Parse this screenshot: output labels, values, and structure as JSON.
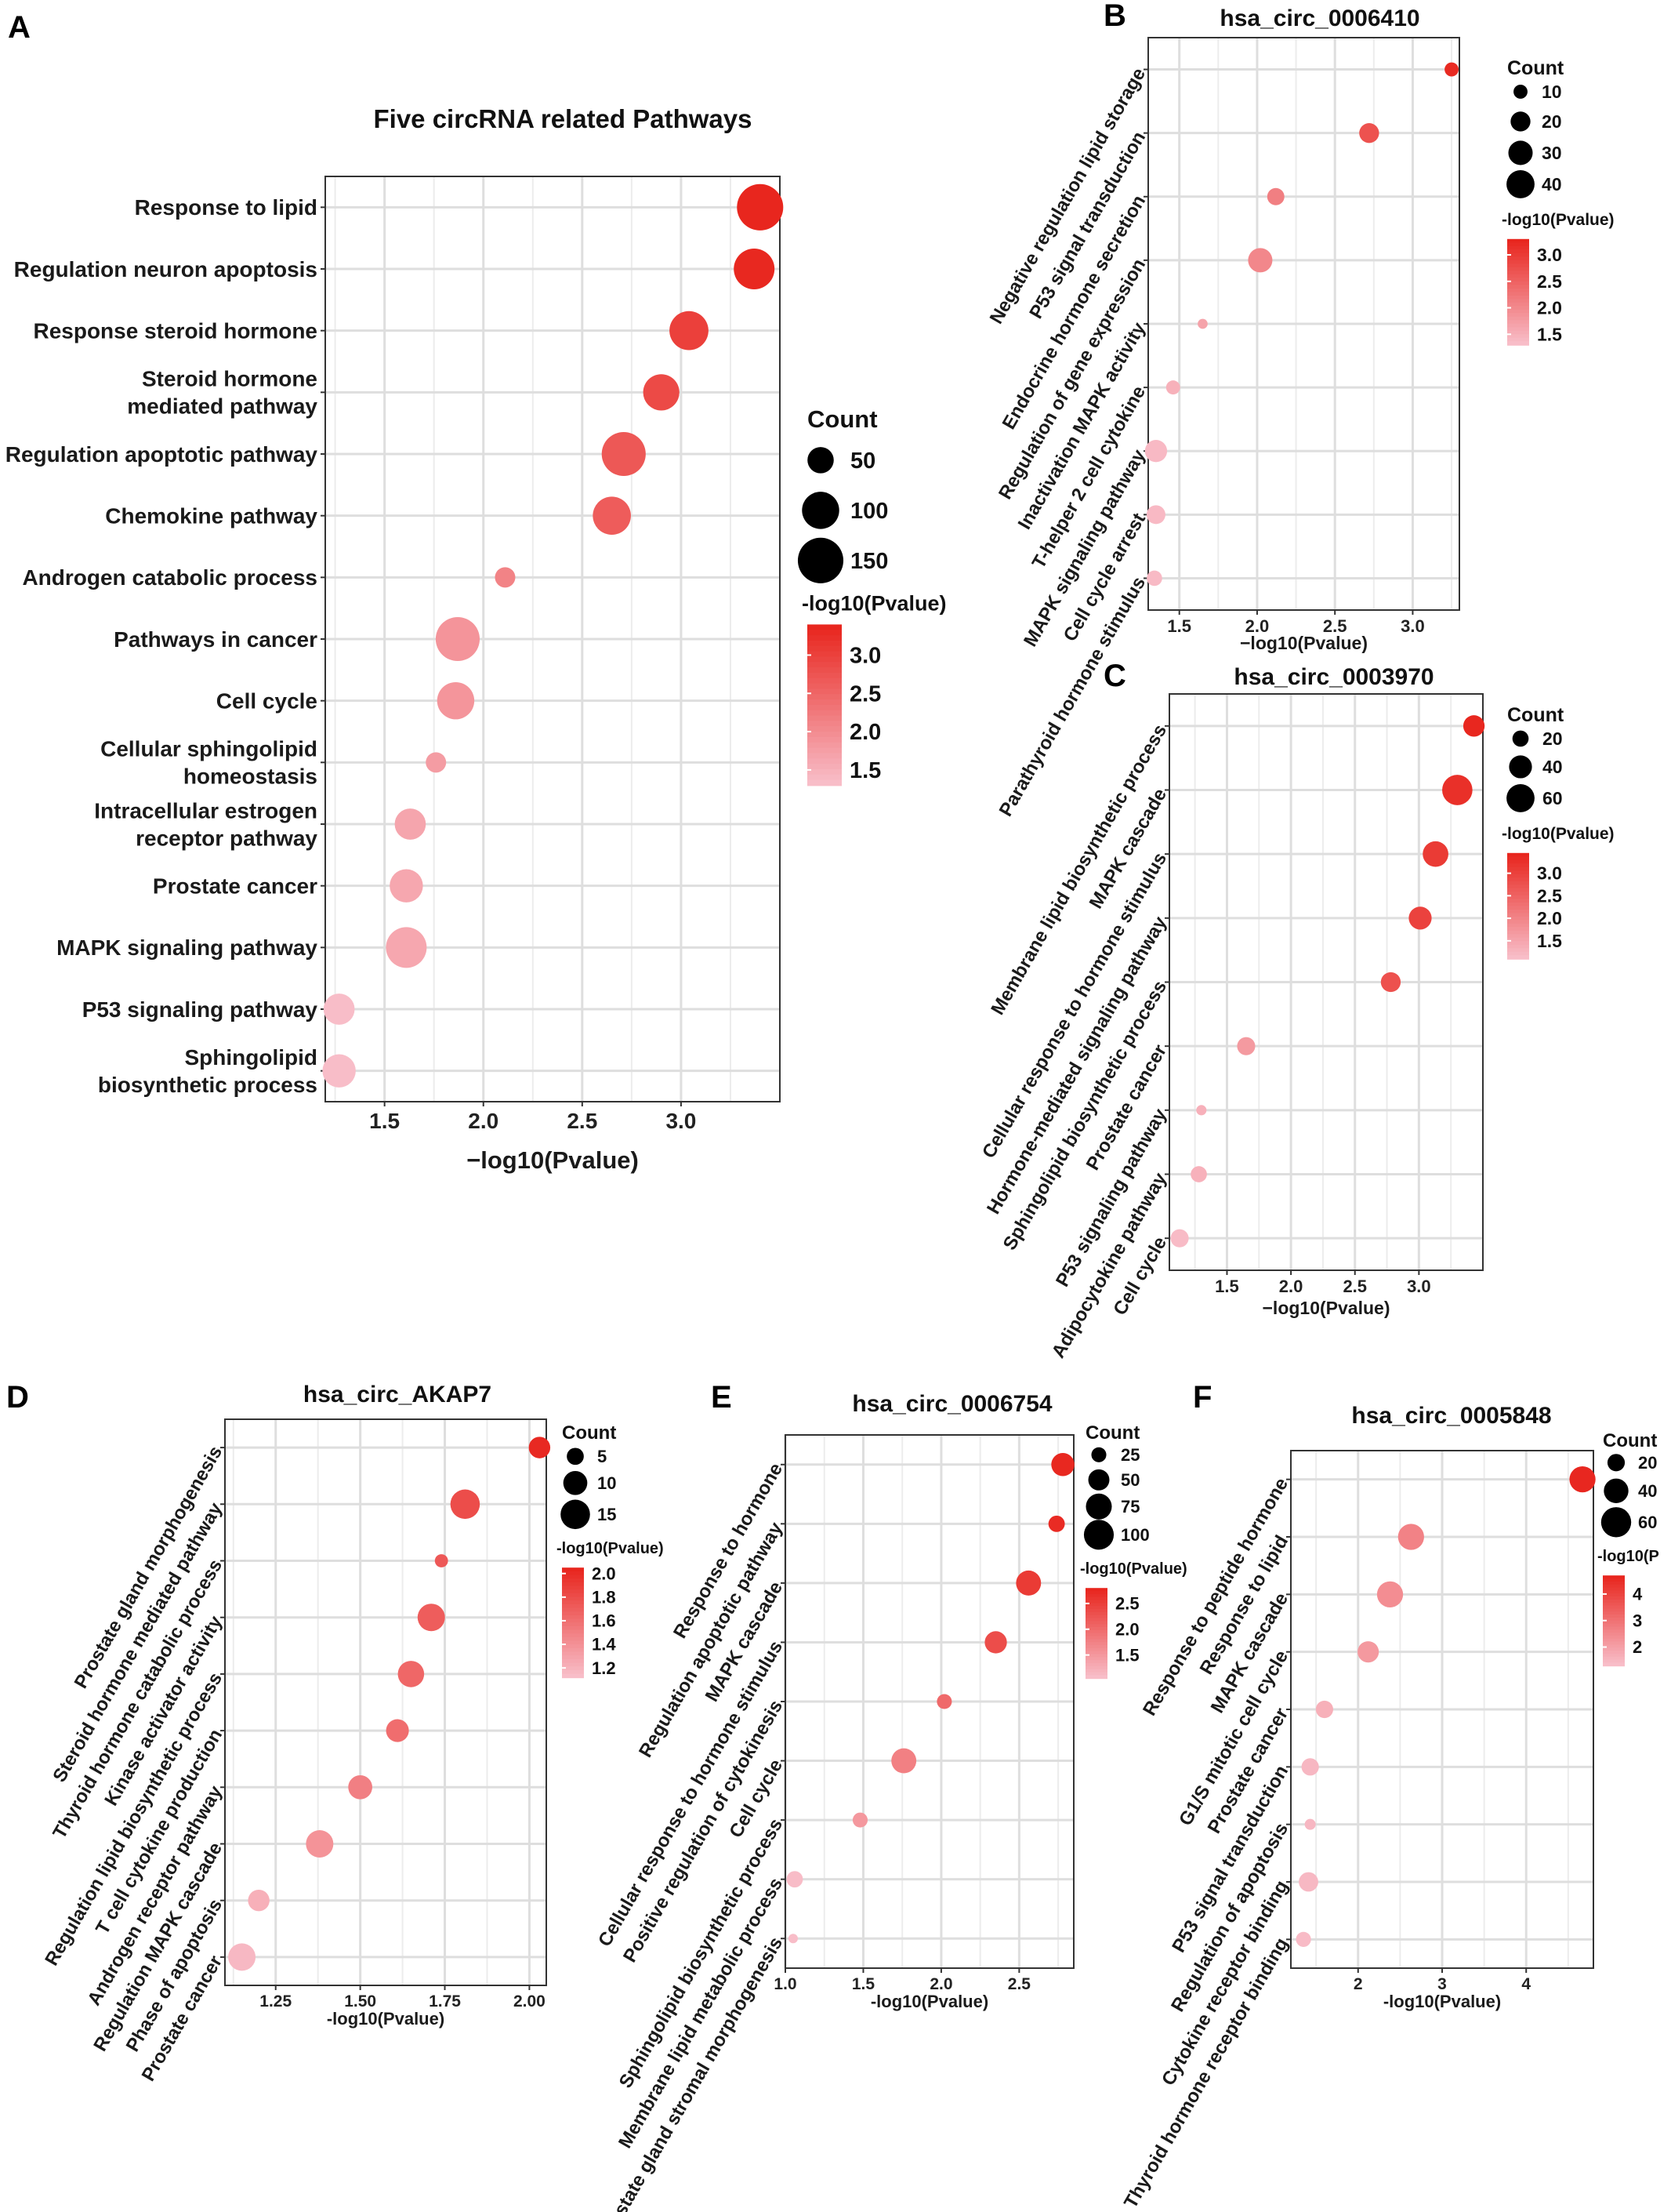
{
  "chart_data": [
    {
      "id": "A",
      "panel_label": "A",
      "type": "scatter",
      "title": "Five circRNA related Pathways",
      "xlabel": "−log10(Pvalue)",
      "xlim": [
        1.2,
        3.5
      ],
      "xticks": [
        1.5,
        2.0,
        2.5,
        3.0
      ],
      "xtick_labels": [
        "1.5",
        "2.0",
        "2.5",
        "3.0"
      ],
      "categories": [
        "Response to lipid",
        "Regulation neuron apoptosis",
        "Response steroid hormone",
        "Steroid hormone\nmediated pathway",
        "Regulation apoptotic pathway",
        "Chemokine pathway",
        "Androgen catabolic process",
        "Pathways in cancer",
        "Cell cycle",
        "Cellular sphingolipid\nhomeostasis",
        "Intracellular estrogen\nreceptor pathway",
        "Prostate cancer",
        "MAPK signaling pathway",
        "P53 signaling pathway",
        "Sphingolipid\nbiosynthetic process"
      ],
      "x": [
        3.4,
        3.37,
        3.04,
        2.9,
        2.71,
        2.65,
        2.11,
        1.87,
        1.86,
        1.76,
        1.63,
        1.61,
        1.61,
        1.27,
        1.27
      ],
      "count": [
        155,
        120,
        110,
        95,
        140,
        105,
        30,
        140,
        100,
        30,
        70,
        80,
        120,
        70,
        80
      ],
      "size_legend": {
        "title": "Count",
        "values": [
          50,
          100,
          150
        ],
        "labels": [
          "50",
          "100",
          "150"
        ]
      },
      "color_legend": {
        "title": "-log10(Pvalue)",
        "range": [
          1.3,
          3.4
        ],
        "ticks": [
          3.0,
          2.5,
          2.0,
          1.5
        ],
        "tick_labels": [
          "3.0",
          "2.5",
          "2.0",
          "1.5"
        ]
      },
      "label_rotate": 0
    },
    {
      "id": "B",
      "panel_label": "B",
      "type": "scatter",
      "title": "hsa_circ_0006410",
      "xlabel": "−log10(Pvalue)",
      "xlim": [
        1.3,
        3.3
      ],
      "xticks": [
        1.5,
        2.0,
        2.5,
        3.0
      ],
      "xtick_labels": [
        "1.5",
        "2.0",
        "2.5",
        "3.0"
      ],
      "categories": [
        "Negative regulation lipid storage",
        "P53 signal transduction",
        "Endocrine hormone secretion",
        "Regulation of gene expression",
        "Inactivation MAPK activity",
        "T-helper 2 cell cytokine",
        "MAPK signaling pathway",
        "Cell cycle arrest",
        "Parathyroid hormone stimulus"
      ],
      "x": [
        3.25,
        2.72,
        2.12,
        2.02,
        1.65,
        1.46,
        1.35,
        1.35,
        1.34
      ],
      "count": [
        10,
        20,
        15,
        30,
        5,
        10,
        25,
        18,
        12
      ],
      "size_legend": {
        "title": "Count",
        "values": [
          10,
          20,
          30,
          40
        ],
        "labels": [
          "10",
          "20",
          "30",
          "40"
        ]
      },
      "color_legend": {
        "title": "-log10(Pvalue)",
        "range": [
          1.3,
          3.3
        ],
        "ticks": [
          3.0,
          2.5,
          2.0,
          1.5
        ],
        "tick_labels": [
          "3.0",
          "2.5",
          "2.0",
          "1.5"
        ]
      },
      "label_rotate": -60
    },
    {
      "id": "C",
      "panel_label": "C",
      "type": "scatter",
      "title": "hsa_circ_0003970",
      "xlabel": "−log10(Pvalue)",
      "xlim": [
        1.05,
        3.5
      ],
      "xticks": [
        1.5,
        2.0,
        2.5,
        3.0
      ],
      "xtick_labels": [
        "1.5",
        "2.0",
        "2.5",
        "3.0"
      ],
      "categories": [
        "Membrane lipid biosynthetic process",
        "MAPK cascade",
        "Cellular response to hormone stimulus",
        "Hormone-mediated signaling pathway",
        "Sphingolipid biosynthetic process",
        "Prostate cancer",
        "P53 signaling pathway",
        "Adipocytokine pathway",
        "Cell cycle"
      ],
      "x": [
        3.43,
        3.3,
        3.13,
        3.01,
        2.78,
        1.65,
        1.3,
        1.28,
        1.13
      ],
      "count": [
        35,
        70,
        50,
        40,
        30,
        25,
        8,
        20,
        25
      ],
      "size_legend": {
        "title": "Count",
        "values": [
          20,
          40,
          60
        ],
        "labels": [
          "20",
          "40",
          "60"
        ]
      },
      "color_legend": {
        "title": "-log10(Pvalue)",
        "range": [
          1.1,
          3.45
        ],
        "ticks": [
          3.0,
          2.5,
          2.0,
          1.5
        ],
        "tick_labels": [
          "3.0",
          "2.5",
          "2.0",
          "1.5"
        ]
      },
      "label_rotate": -60
    },
    {
      "id": "D",
      "panel_label": "D",
      "type": "scatter",
      "title": "hsa_circ_AKAP7",
      "xlabel": "-log10(Pvalue)",
      "xlim": [
        1.1,
        2.05
      ],
      "xticks": [
        1.25,
        1.5,
        1.75,
        2.0
      ],
      "xtick_labels": [
        "1.25",
        "1.50",
        "1.75",
        "2.00"
      ],
      "categories": [
        "Prostate gland morphogenesis",
        "Steroid hormone mediated pathway",
        "Thyroid hormone catabolic process",
        "Kinase activator activity",
        "Regulation lipid biosynthetic process",
        "T cell cytokine production",
        "Androgen receptor pathway",
        "Regulation MAPK cascade",
        "Phase of apoptosis",
        "Prostate cancer"
      ],
      "x": [
        2.03,
        1.81,
        1.74,
        1.71,
        1.65,
        1.61,
        1.5,
        1.38,
        1.2,
        1.15
      ],
      "count": [
        8,
        15,
        3,
        13,
        12,
        9,
        10,
        13,
        8,
        13
      ],
      "size_legend": {
        "title": "Count",
        "values": [
          5,
          10,
          15
        ],
        "labels": [
          "5",
          "10",
          "15"
        ]
      },
      "color_legend": {
        "title": "-log10(Pvalue)",
        "range": [
          1.12,
          2.05
        ],
        "ticks": [
          2.0,
          1.8,
          1.6,
          1.4,
          1.2
        ],
        "tick_labels": [
          "2.0",
          "1.8",
          "1.6",
          "1.4",
          "1.2"
        ]
      },
      "label_rotate": -60
    },
    {
      "id": "E",
      "panel_label": "E",
      "type": "scatter",
      "title": "hsa_circ_0006754",
      "xlabel": "-log10(Pvalue)",
      "xlim": [
        1.0,
        2.85
      ],
      "xticks": [
        1.0,
        1.5,
        2.0,
        2.5
      ],
      "xtick_labels": [
        "1.0",
        "1.5",
        "2.0",
        "2.5"
      ],
      "categories": [
        "Response to hormone",
        "Regulation apoptotic pathway",
        "MAPK cascade",
        "Cellular response to hormone stimulus",
        "Positive regulation of cytokinesis",
        "Cell cycle",
        "Sphingolipid biosynthetic process",
        "Membrane lipid metabolic process",
        "Prostate gland stromal morphogenesis"
      ],
      "x": [
        2.78,
        2.74,
        2.56,
        2.35,
        2.02,
        1.76,
        1.48,
        1.06,
        1.05
      ],
      "count": [
        60,
        30,
        70,
        55,
        25,
        70,
        25,
        30,
        10
      ],
      "size_legend": {
        "title": "Count",
        "values": [
          25,
          50,
          75,
          100
        ],
        "labels": [
          "25",
          "50",
          "75",
          "100"
        ]
      },
      "color_legend": {
        "title": "-log10(Pvalue)",
        "range": [
          1.05,
          2.8
        ],
        "ticks": [
          2.5,
          2.0,
          1.5
        ],
        "tick_labels": [
          "2.5",
          "2.0",
          "1.5"
        ]
      },
      "label_rotate": -60
    },
    {
      "id": "F",
      "panel_label": "F",
      "type": "scatter",
      "title": "hsa_circ_0005848",
      "xlabel": "-log10(Pvalue)",
      "xlim": [
        1.2,
        4.8
      ],
      "xticks": [
        2,
        3,
        4
      ],
      "xtick_labels": [
        "2",
        "3",
        "4"
      ],
      "categories": [
        "Response to peptide hormone",
        "Response to lipid",
        "MAPK cascade",
        "G1/S mitotic cell cycle",
        "Prostate cancer",
        "P53 signal transduction",
        "Regulation of apoptosis",
        "Cytokine receptor binding",
        "Thyroid hormone receptor binding"
      ],
      "x": [
        4.67,
        2.63,
        2.38,
        2.12,
        1.6,
        1.43,
        1.43,
        1.41,
        1.35
      ],
      "count": [
        45,
        45,
        45,
        30,
        20,
        20,
        8,
        25,
        15
      ],
      "size_legend": {
        "title": "Count",
        "values": [
          20,
          40,
          60
        ],
        "labels": [
          "20",
          "40",
          "60"
        ]
      },
      "color_legend": {
        "title": "-log10(P",
        "range": [
          1.3,
          4.7
        ],
        "ticks": [
          4,
          3,
          2
        ],
        "tick_labels": [
          "4",
          "3",
          "2"
        ]
      },
      "label_rotate": -60
    }
  ]
}
